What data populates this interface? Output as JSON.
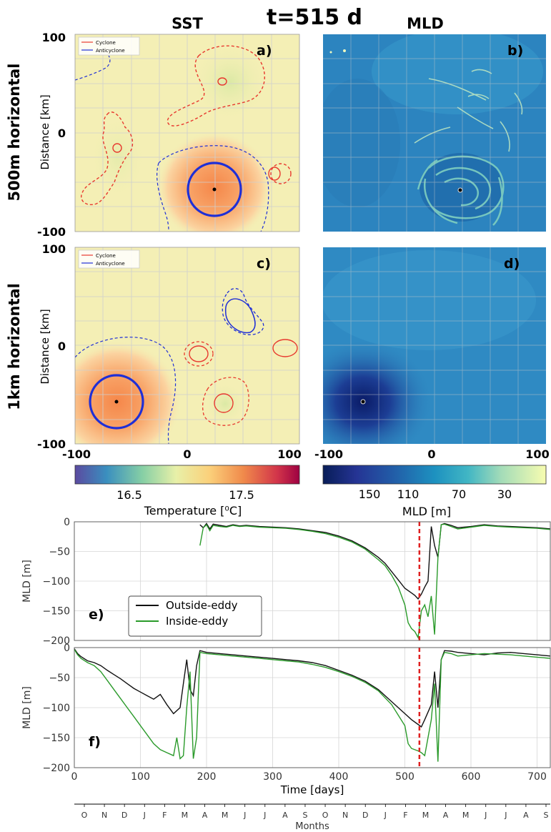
{
  "figure": {
    "title": "t=515 d",
    "col_sst": "SST",
    "col_mld": "MLD",
    "row_500m": "500m horizontal",
    "row_1km": "1km horizontal"
  },
  "maps": {
    "ylabel": "Distance [km]",
    "y_ticks": [
      "100",
      "0",
      "-100"
    ],
    "x_ticks_sst": [
      "-100",
      "0",
      "100"
    ],
    "x_ticks_mld": [
      "-100",
      "0",
      "100"
    ],
    "legend": [
      "Cyclone",
      "Anticyclone"
    ],
    "panel_labels": [
      "a)",
      "b)",
      "c)",
      "d)"
    ],
    "colors": {
      "cyclone": "#e8392f",
      "anticyclone": "#1f2fd6"
    },
    "eddy_center_a": [
      27,
      -57
    ],
    "eddy_center_c": [
      -68,
      -57
    ],
    "eddy_center_b": [
      27,
      -57
    ],
    "eddy_center_d": [
      -68,
      -57
    ]
  },
  "colorbars": {
    "sst": {
      "ticks": [
        "16.5",
        "17.5"
      ],
      "label": "Temperature [⁰C]",
      "colors": [
        "#5b4aa0",
        "#3a8fbf",
        "#86cfa5",
        "#e8f0a8",
        "#fbd07a",
        "#f08a4b",
        "#d2354a",
        "#9e0142"
      ]
    },
    "mld": {
      "ticks": [
        "150",
        "110",
        "70",
        "30"
      ],
      "label": "MLD [m]",
      "colors": [
        "#081d58",
        "#253494",
        "#225ea8",
        "#1d91c0",
        "#41b6c4",
        "#7fcdbb",
        "#c7e9b4",
        "#f7fcb0"
      ]
    }
  },
  "chart_data": [
    {
      "type": "line",
      "panel": "e)",
      "ylabel": "MLD [m]",
      "xlim": [
        0,
        720
      ],
      "ylim": [
        -200,
        0
      ],
      "y_ticks": [
        "0",
        "−50",
        "−100",
        "−150",
        "−200"
      ],
      "grid": true,
      "legend_placement": "lower-left",
      "marker_x": 522,
      "series": [
        {
          "name": "Outside-eddy",
          "color": "#111111",
          "x": [
            190,
            195,
            200,
            205,
            210,
            220,
            230,
            240,
            250,
            260,
            280,
            300,
            320,
            340,
            360,
            380,
            400,
            420,
            440,
            460,
            470,
            480,
            490,
            500,
            510,
            515,
            520,
            525,
            530,
            535,
            540,
            545,
            550,
            555,
            560,
            570,
            580,
            600,
            620,
            640,
            660,
            680,
            700,
            720
          ],
          "y": [
            -5,
            -10,
            -3,
            -12,
            -4,
            -6,
            -8,
            -5,
            -7,
            -6,
            -8,
            -9,
            -10,
            -12,
            -15,
            -18,
            -24,
            -32,
            -44,
            -60,
            -70,
            -84,
            -98,
            -112,
            -120,
            -124,
            -130,
            -122,
            -110,
            -100,
            -8,
            -40,
            -60,
            -5,
            -3,
            -6,
            -10,
            -8,
            -5,
            -7,
            -8,
            -9,
            -10,
            -12
          ]
        },
        {
          "name": "Inside-eddy",
          "color": "#2a9a2a",
          "x": [
            190,
            195,
            200,
            205,
            210,
            220,
            230,
            240,
            250,
            260,
            280,
            300,
            320,
            340,
            360,
            380,
            400,
            420,
            440,
            460,
            470,
            480,
            490,
            500,
            505,
            510,
            515,
            520,
            525,
            530,
            535,
            540,
            545,
            550,
            555,
            560,
            570,
            580,
            600,
            620,
            640,
            660,
            680,
            700,
            720
          ],
          "y": [
            -40,
            -10,
            -5,
            -15,
            -6,
            -8,
            -9,
            -6,
            -8,
            -7,
            -9,
            -10,
            -11,
            -13,
            -16,
            -20,
            -26,
            -34,
            -46,
            -64,
            -74,
            -90,
            -110,
            -140,
            -170,
            -180,
            -185,
            -195,
            -150,
            -140,
            -160,
            -125,
            -190,
            -60,
            -5,
            -4,
            -8,
            -12,
            -9,
            -6,
            -8,
            -9,
            -10,
            -11,
            -13
          ]
        }
      ]
    },
    {
      "type": "line",
      "panel": "f)",
      "xlabel": "Time [days]",
      "ylabel": "MLD [m]",
      "xlim": [
        0,
        720
      ],
      "ylim": [
        -200,
        0
      ],
      "x_ticks": [
        "0",
        "100",
        "200",
        "300",
        "400",
        "500",
        "600",
        "700"
      ],
      "y_ticks": [
        "0",
        "−50",
        "−100",
        "−150",
        "−200"
      ],
      "grid": true,
      "marker_x": 522,
      "series": [
        {
          "name": "Outside-eddy",
          "color": "#111111",
          "x": [
            0,
            5,
            10,
            20,
            30,
            40,
            50,
            60,
            70,
            80,
            90,
            100,
            110,
            120,
            130,
            140,
            150,
            160,
            165,
            170,
            175,
            180,
            185,
            190,
            200,
            220,
            240,
            260,
            280,
            300,
            320,
            340,
            360,
            380,
            400,
            420,
            440,
            460,
            480,
            500,
            510,
            520,
            525,
            530,
            540,
            545,
            550,
            555,
            560,
            570,
            580,
            600,
            620,
            640,
            660,
            680,
            700,
            720
          ],
          "y": [
            -2,
            -10,
            -15,
            -22,
            -25,
            -30,
            -38,
            -45,
            -52,
            -60,
            -68,
            -74,
            -80,
            -86,
            -78,
            -95,
            -110,
            -100,
            -60,
            -20,
            -70,
            -80,
            -30,
            -5,
            -8,
            -10,
            -12,
            -14,
            -16,
            -18,
            -20,
            -22,
            -25,
            -30,
            -38,
            -46,
            -56,
            -70,
            -90,
            -110,
            -120,
            -128,
            -132,
            -120,
            -95,
            -40,
            -100,
            -20,
            -5,
            -6,
            -8,
            -10,
            -12,
            -9,
            -8,
            -10,
            -12,
            -14
          ]
        },
        {
          "name": "Inside-eddy",
          "color": "#2a9a2a",
          "x": [
            0,
            5,
            10,
            20,
            30,
            40,
            50,
            60,
            70,
            80,
            90,
            100,
            110,
            120,
            130,
            140,
            150,
            155,
            160,
            165,
            170,
            175,
            180,
            185,
            190,
            200,
            220,
            240,
            260,
            280,
            300,
            320,
            340,
            360,
            380,
            400,
            420,
            440,
            460,
            480,
            500,
            505,
            510,
            520,
            525,
            530,
            540,
            545,
            550,
            555,
            560,
            570,
            580,
            600,
            620,
            640,
            660,
            680,
            700,
            720
          ],
          "y": [
            -3,
            -12,
            -18,
            -25,
            -30,
            -40,
            -55,
            -70,
            -85,
            -100,
            -115,
            -130,
            -145,
            -160,
            -170,
            -175,
            -180,
            -150,
            -185,
            -180,
            -100,
            -40,
            -185,
            -150,
            -8,
            -10,
            -12,
            -14,
            -16,
            -18,
            -20,
            -22,
            -24,
            -28,
            -33,
            -40,
            -48,
            -58,
            -72,
            -95,
            -130,
            -160,
            -168,
            -172,
            -175,
            -180,
            -120,
            -60,
            -190,
            -20,
            -8,
            -10,
            -14,
            -12,
            -10,
            -11,
            -12,
            -14,
            -16,
            -18
          ]
        }
      ]
    }
  ],
  "months": {
    "labels": [
      "O",
      "N",
      "D",
      "J",
      "F",
      "M",
      "A",
      "M",
      "J",
      "J",
      "A",
      "S",
      "O",
      "N",
      "D",
      "J",
      "F",
      "M",
      "A",
      "M",
      "J",
      "J",
      "A",
      "S"
    ],
    "title": "Months"
  }
}
